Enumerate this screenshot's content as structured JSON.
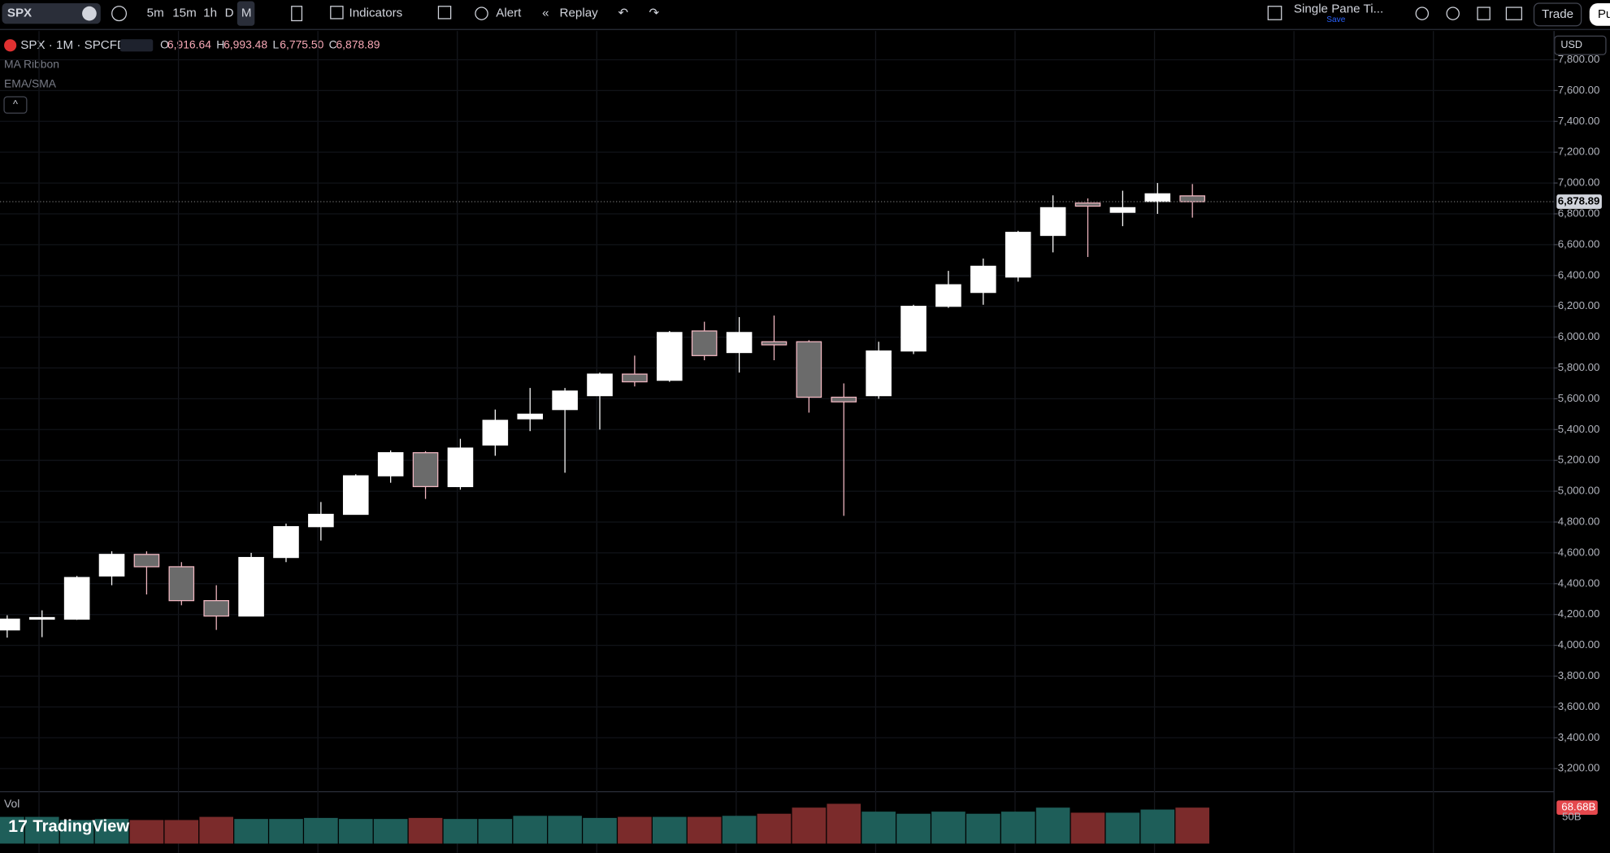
{
  "toolbar": {
    "symbol": "SPX",
    "intervals": [
      "5m",
      "15m",
      "1h",
      "D",
      "M"
    ],
    "indicators": "Indicators",
    "alert": "Alert",
    "replay": "Replay",
    "layout": "Single Pane Ti...",
    "save": "Save",
    "trade": "Trade",
    "publish": "Pu"
  },
  "legend": {
    "title": "SPX · 1M · SPCFD",
    "ohlc": [
      {
        "k": "O",
        "v": "6,916.64"
      },
      {
        "k": "H",
        "v": "6,993.48"
      },
      {
        "k": "L",
        "v": "6,775.50"
      },
      {
        "k": "C",
        "v": "6,878.89"
      }
    ],
    "studies": [
      "MA Ribbon",
      "EMA/SMA"
    ],
    "volume": "Vol"
  },
  "currency": "USD",
  "brand": "TradingView",
  "chart_data": {
    "type": "candlestick",
    "open": [
      4100,
      4170,
      4170,
      4450,
      4590,
      4510,
      4290,
      4190,
      4570,
      4770,
      4850,
      5100,
      5250,
      5030,
      5300,
      5470,
      5530,
      5620,
      5760,
      5720,
      6040,
      5900,
      5970,
      5970,
      5610,
      5620,
      5910,
      6200,
      6290,
      6390,
      6660,
      6870,
      6810,
      6880,
      6916.64
    ],
    "high": [
      4195,
      4227,
      4450,
      4610,
      4610,
      4540,
      4390,
      4600,
      4790,
      4930,
      5110,
      5265,
      5260,
      5340,
      5530,
      5670,
      5670,
      5770,
      5880,
      6040,
      6100,
      6130,
      6140,
      5980,
      5700,
      5970,
      6210,
      6430,
      6510,
      6690,
      6920,
      6900,
      6950,
      7000,
      6993.48
    ],
    "low": [
      4050,
      4053,
      4165,
      4390,
      4330,
      4260,
      4100,
      4190,
      4540,
      4680,
      4850,
      5055,
      4950,
      5010,
      5230,
      5390,
      5120,
      5400,
      5680,
      5710,
      5850,
      5770,
      5850,
      5510,
      4840,
      5600,
      5890,
      6190,
      6210,
      6360,
      6550,
      6520,
      6720,
      6800,
      6775.5
    ],
    "close": [
      4170,
      4180,
      4440,
      4590,
      4510,
      4290,
      4190,
      4570,
      4770,
      4850,
      5100,
      5250,
      5030,
      5280,
      5460,
      5500,
      5650,
      5760,
      5710,
      6030,
      5880,
      6030,
      5950,
      5610,
      5580,
      5910,
      6200,
      6340,
      6460,
      6680,
      6840,
      6850,
      6840,
      6930,
      6878.89
    ],
    "last_label": "6,878.89",
    "ylim": [
      3053.3,
      7986.7
    ],
    "yticks": [
      {
        "value": 3200,
        "label": "3,200.00"
      },
      {
        "value": 3400,
        "label": "3,400.00"
      },
      {
        "value": 3600,
        "label": "3,600.00"
      },
      {
        "value": 3800,
        "label": "3,800.00"
      },
      {
        "value": 4000,
        "label": "4,000.00"
      },
      {
        "value": 4200,
        "label": "4,200.00"
      },
      {
        "value": 4400,
        "label": "4,400.00"
      },
      {
        "value": 4600,
        "label": "4,600.00"
      },
      {
        "value": 4800,
        "label": "4,800.00"
      },
      {
        "value": 5000,
        "label": "5,000.00"
      },
      {
        "value": 5200,
        "label": "5,200.00"
      },
      {
        "value": 5400,
        "label": "5,400.00"
      },
      {
        "value": 5600,
        "label": "5,600.00"
      },
      {
        "value": 5800,
        "label": "5,800.00"
      },
      {
        "value": 6000,
        "label": "6,000.00"
      },
      {
        "value": 6200,
        "label": "6,200.00"
      },
      {
        "value": 6400,
        "label": "6,400.00"
      },
      {
        "value": 6600,
        "label": "6,600.00"
      },
      {
        "value": 6800,
        "label": "6,800.00"
      },
      {
        "value": 7000,
        "label": "7,000.00"
      },
      {
        "value": 7200,
        "label": "7,200.00"
      },
      {
        "value": 7400,
        "label": "7,400.00"
      },
      {
        "value": 7600,
        "label": "7,600.00"
      },
      {
        "value": 7800,
        "label": "7,800.00"
      }
    ],
    "up_color": "#ffffff",
    "down_color": "#6b6b6b",
    "down_border": "#f2b8c2",
    "volume": [
      51,
      51,
      45,
      47,
      45,
      45,
      51,
      47,
      47,
      49,
      47,
      47,
      49,
      47,
      47,
      53,
      53,
      49,
      51,
      51,
      51,
      53,
      57,
      68.68,
      76,
      61,
      57,
      61,
      57,
      61,
      68.68,
      59,
      59,
      65,
      68.68
    ],
    "volume_labels": [
      null,
      null,
      null,
      null,
      null,
      null,
      null,
      null,
      null,
      null,
      null,
      null,
      null,
      null,
      null,
      null,
      null,
      null,
      null,
      null,
      null,
      null,
      null,
      null,
      null,
      null,
      null,
      null,
      null,
      null,
      null,
      null,
      null,
      null,
      "68.68B"
    ],
    "volume_ylim": [
      0,
      100
    ],
    "volume_ticks": [
      {
        "value": 50,
        "label": "50B"
      }
    ],
    "volume_up_color": "#1e5e59",
    "volume_down_color": "#7b2b2b"
  }
}
